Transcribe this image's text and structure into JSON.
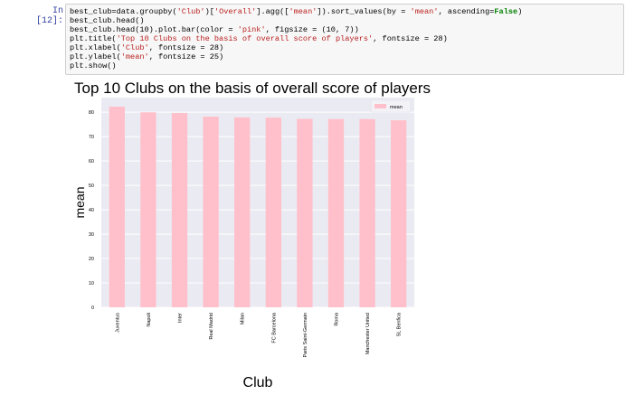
{
  "cell": {
    "prompt": "In [12]:",
    "code_lines": [
      "best_club=data.groupby('Club')['Overall'].agg(['mean']).sort_values(by = 'mean', ascending=False)",
      "best_club.head()",
      "best_club.head(10).plot.bar(color = 'pink', figsize = (10, 7))",
      "plt.title('Top 10 Clubs on the basis of overall score of players', fontsize = 28)",
      "plt.xlabel('Club', fontsize = 28)",
      "plt.ylabel('mean', fontsize = 25)",
      "plt.show()"
    ]
  },
  "colors": {
    "bar": "#ffc0cb",
    "plot_bg": "#eaeaf2",
    "grid": "#ffffff"
  },
  "chart_data": {
    "type": "bar",
    "title": "Top 10 Clubs on the basis of overall score of players",
    "xlabel": "Club",
    "ylabel": "mean",
    "categories": [
      "Juventus",
      "Napoli",
      "Inter",
      "Real Madrid",
      "Milan",
      "FC Barcelona",
      "Paris Saint-Germain",
      "Roma",
      "Manchester United",
      "SL Benfica"
    ],
    "series": [
      {
        "name": "mean",
        "values": [
          82.3,
          80.0,
          79.7,
          78.2,
          77.9,
          77.8,
          77.3,
          77.2,
          77.2,
          76.7
        ]
      }
    ],
    "yticks": [
      0,
      10,
      20,
      30,
      40,
      50,
      60,
      70,
      80
    ],
    "ylim": [
      0,
      86
    ],
    "legend": "top-right",
    "grid": true
  }
}
